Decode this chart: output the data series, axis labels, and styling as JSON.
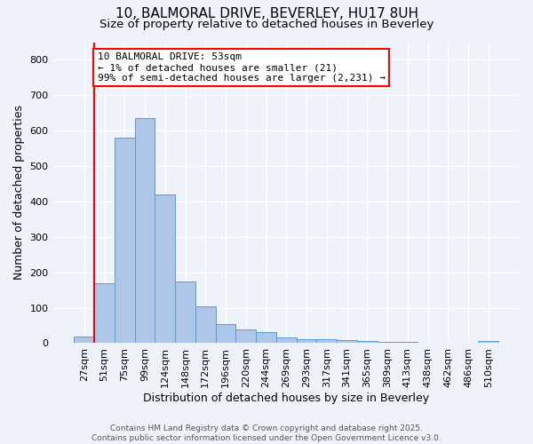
{
  "title1": "10, BALMORAL DRIVE, BEVERLEY, HU17 8UH",
  "title2": "Size of property relative to detached houses in Beverley",
  "xlabel": "Distribution of detached houses by size in Beverley",
  "ylabel": "Number of detached properties",
  "bins": [
    "27sqm",
    "51sqm",
    "75sqm",
    "99sqm",
    "124sqm",
    "148sqm",
    "172sqm",
    "196sqm",
    "220sqm",
    "244sqm",
    "269sqm",
    "293sqm",
    "317sqm",
    "341sqm",
    "365sqm",
    "389sqm",
    "413sqm",
    "438sqm",
    "462sqm",
    "486sqm",
    "510sqm"
  ],
  "values": [
    18,
    170,
    580,
    635,
    420,
    175,
    105,
    55,
    40,
    32,
    15,
    12,
    10,
    8,
    7,
    4,
    3,
    2,
    1,
    1,
    6
  ],
  "bar_color": "#aec6e8",
  "bar_edge_color": "#5b9bd5",
  "vline_x": 1,
  "vline_color": "red",
  "annotation_text": "10 BALMORAL DRIVE: 53sqm\n← 1% of detached houses are smaller (21)\n99% of semi-detached houses are larger (2,231) →",
  "annotation_box_color": "white",
  "annotation_box_edge_color": "red",
  "ylim": [
    0,
    850
  ],
  "yticks": [
    0,
    100,
    200,
    300,
    400,
    500,
    600,
    700,
    800
  ],
  "footer": "Contains HM Land Registry data © Crown copyright and database right 2025.\nContains public sector information licensed under the Open Government Licence v3.0.",
  "background_color": "#eef2fa",
  "grid_color": "white",
  "title_fontsize": 11,
  "subtitle_fontsize": 9.5,
  "axis_fontsize": 9,
  "tick_fontsize": 8,
  "footer_fontsize": 6.5
}
